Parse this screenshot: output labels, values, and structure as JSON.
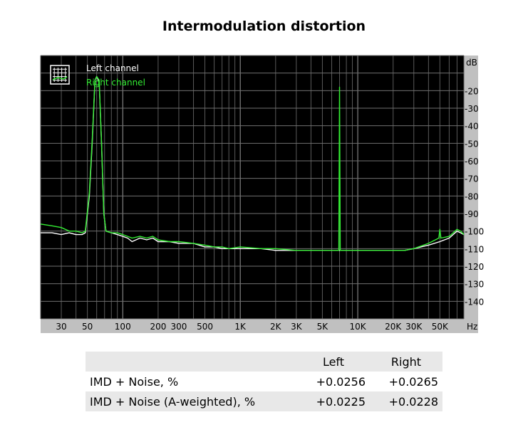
{
  "chart_data": {
    "type": "line",
    "title": "Intermodulation distortion",
    "xscale": "log",
    "xlim": [
      20,
      80000
    ],
    "ylim": [
      -150,
      0
    ],
    "y_unit": "dB",
    "x_unit": "Hz",
    "x_ticks": [
      {
        "v": 30,
        "label": "30"
      },
      {
        "v": 50,
        "label": "50"
      },
      {
        "v": 100,
        "label": "100"
      },
      {
        "v": 200,
        "label": "200"
      },
      {
        "v": 300,
        "label": "300"
      },
      {
        "v": 500,
        "label": "500"
      },
      {
        "v": 1000,
        "label": "1K"
      },
      {
        "v": 2000,
        "label": "2K"
      },
      {
        "v": 3000,
        "label": "3K"
      },
      {
        "v": 5000,
        "label": "5K"
      },
      {
        "v": 10000,
        "label": "10K"
      },
      {
        "v": 20000,
        "label": "20K"
      },
      {
        "v": 30000,
        "label": "30K"
      },
      {
        "v": 50000,
        "label": "50K"
      }
    ],
    "y_ticks": [
      {
        "v": -20,
        "label": "-20"
      },
      {
        "v": -30,
        "label": "-30"
      },
      {
        "v": -40,
        "label": "-40"
      },
      {
        "v": -50,
        "label": "-50"
      },
      {
        "v": -60,
        "label": "-60"
      },
      {
        "v": -70,
        "label": "-70"
      },
      {
        "v": -80,
        "label": "-80"
      },
      {
        "v": -90,
        "label": "-90"
      },
      {
        "v": -100,
        "label": "-100"
      },
      {
        "v": -110,
        "label": "-110"
      },
      {
        "v": -120,
        "label": "-120"
      },
      {
        "v": -130,
        "label": "-130"
      },
      {
        "v": -140,
        "label": "-140"
      }
    ],
    "grid": true,
    "legend_position": "top-left",
    "series": [
      {
        "name": "Left channel",
        "color": "#ffffff",
        "points": [
          [
            20,
            -101
          ],
          [
            25,
            -101
          ],
          [
            30,
            -102
          ],
          [
            35,
            -101
          ],
          [
            40,
            -102
          ],
          [
            45,
            -102
          ],
          [
            48,
            -101
          ],
          [
            52,
            -80
          ],
          [
            55,
            -50
          ],
          [
            58,
            -14
          ],
          [
            60,
            -12
          ],
          [
            63,
            -15
          ],
          [
            66,
            -50
          ],
          [
            69,
            -90
          ],
          [
            72,
            -100
          ],
          [
            80,
            -101
          ],
          [
            90,
            -102
          ],
          [
            100,
            -103
          ],
          [
            110,
            -104
          ],
          [
            120,
            -106
          ],
          [
            140,
            -104
          ],
          [
            160,
            -105
          ],
          [
            180,
            -104
          ],
          [
            200,
            -106
          ],
          [
            250,
            -106
          ],
          [
            300,
            -107
          ],
          [
            400,
            -107
          ],
          [
            500,
            -109
          ],
          [
            600,
            -109
          ],
          [
            700,
            -110
          ],
          [
            800,
            -110
          ],
          [
            1000,
            -110
          ],
          [
            1500,
            -110
          ],
          [
            2000,
            -111
          ],
          [
            3000,
            -111
          ],
          [
            5000,
            -111
          ],
          [
            7000,
            -111
          ],
          [
            10000,
            -111
          ],
          [
            15000,
            -111
          ],
          [
            20000,
            -111
          ],
          [
            25000,
            -111
          ],
          [
            30000,
            -110
          ],
          [
            40000,
            -108
          ],
          [
            50000,
            -106
          ],
          [
            60000,
            -104
          ],
          [
            70000,
            -100
          ],
          [
            75000,
            -101
          ],
          [
            80000,
            -102
          ]
        ]
      },
      {
        "name": "Right channel",
        "color": "#33ee33",
        "points": [
          [
            20,
            -96
          ],
          [
            25,
            -97
          ],
          [
            30,
            -98
          ],
          [
            35,
            -100
          ],
          [
            40,
            -100
          ],
          [
            45,
            -101
          ],
          [
            48,
            -100
          ],
          [
            52,
            -78
          ],
          [
            55,
            -48
          ],
          [
            58,
            -14
          ],
          [
            60,
            -12
          ],
          [
            63,
            -14
          ],
          [
            66,
            -50
          ],
          [
            69,
            -90
          ],
          [
            72,
            -100
          ],
          [
            80,
            -101
          ],
          [
            90,
            -101
          ],
          [
            100,
            -102
          ],
          [
            110,
            -103
          ],
          [
            120,
            -104
          ],
          [
            140,
            -103
          ],
          [
            160,
            -104
          ],
          [
            180,
            -103
          ],
          [
            200,
            -105
          ],
          [
            250,
            -106
          ],
          [
            300,
            -106
          ],
          [
            400,
            -107
          ],
          [
            500,
            -108
          ],
          [
            600,
            -109
          ],
          [
            700,
            -109
          ],
          [
            800,
            -110
          ],
          [
            1000,
            -109
          ],
          [
            1500,
            -110
          ],
          [
            2000,
            -110
          ],
          [
            3000,
            -111
          ],
          [
            5000,
            -111
          ],
          [
            6900,
            -111
          ],
          [
            7000,
            -18
          ],
          [
            7100,
            -111
          ],
          [
            8000,
            -111
          ],
          [
            10000,
            -111
          ],
          [
            15000,
            -111
          ],
          [
            20000,
            -111
          ],
          [
            25000,
            -111
          ],
          [
            30000,
            -110
          ],
          [
            40000,
            -107
          ],
          [
            49000,
            -104
          ],
          [
            50000,
            -99
          ],
          [
            51000,
            -104
          ],
          [
            60000,
            -103
          ],
          [
            70000,
            -99
          ],
          [
            75000,
            -100
          ],
          [
            80000,
            -102
          ]
        ]
      }
    ]
  },
  "results_table": {
    "headers": [
      "",
      "Left",
      "Right"
    ],
    "rows": [
      {
        "label": "IMD + Noise, %",
        "left": "+0.0256",
        "right": "+0.0265"
      },
      {
        "label": "IMD + Noise (A-weighted), %",
        "left": "+0.0225",
        "right": "+0.0228"
      }
    ]
  }
}
